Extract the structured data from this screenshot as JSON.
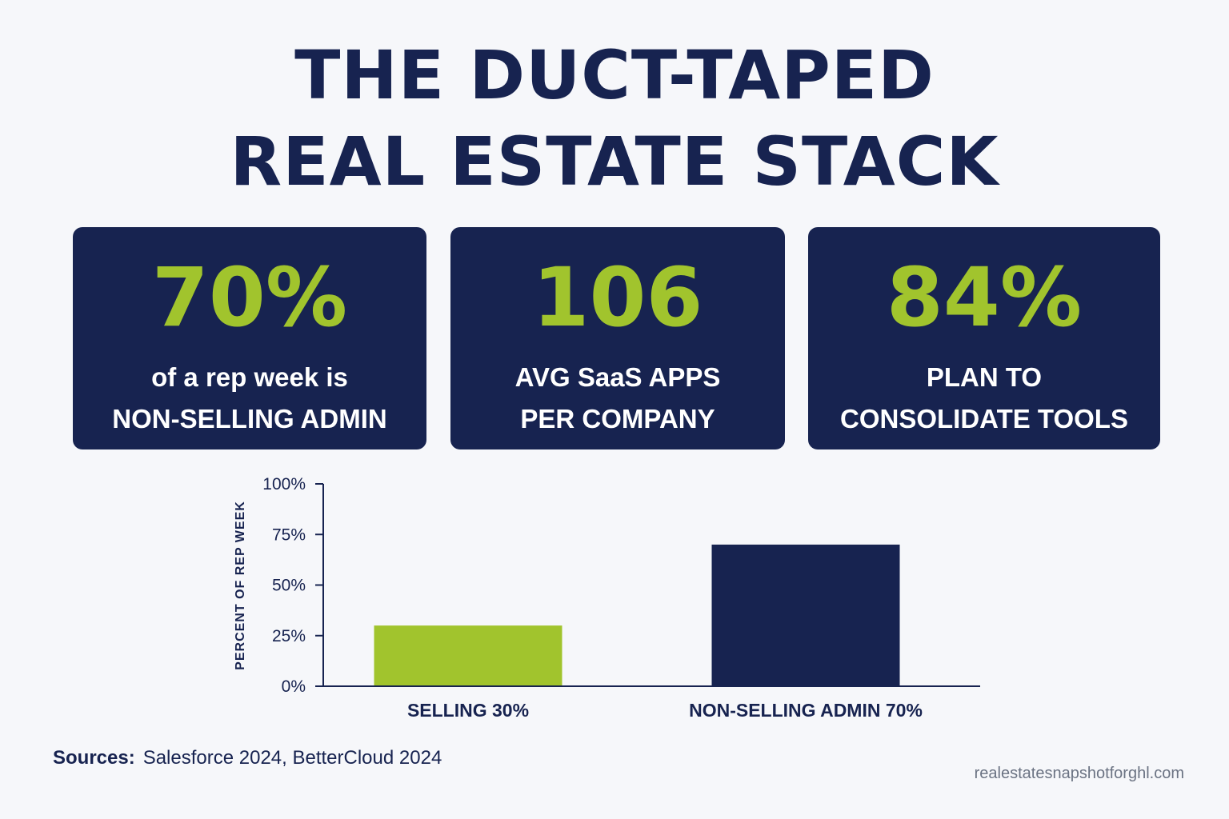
{
  "title": {
    "line1": "THE DUCT-TAPED",
    "line2": "REAL ESTATE STACK"
  },
  "stats": [
    {
      "value": "70%",
      "line1": "of a rep week is",
      "line2": "NON-SELLING ADMIN"
    },
    {
      "value": "106",
      "line1": "AVG SaaS APPS",
      "line2": "PER COMPANY"
    },
    {
      "value": "84%",
      "line1": "PLAN TO",
      "line2": "CONSOLIDATE TOOLS"
    }
  ],
  "chart_data": {
    "type": "bar",
    "categories": [
      "SELLING 30%",
      "NON-SELLING ADMIN 70%"
    ],
    "values": [
      30,
      70
    ],
    "colors": [
      "#a1c42d",
      "#172350"
    ],
    "ylabel": "PERCENT OF REP WEEK",
    "ylim": [
      0,
      100
    ],
    "yticks": [
      0,
      25,
      50,
      75,
      100
    ],
    "ytick_labels": [
      "0%",
      "25%",
      "50%",
      "75%",
      "100%"
    ],
    "grid": false
  },
  "footer": {
    "sources_label": "Sources:",
    "sources_text": "Salesforce 2024, BetterCloud 2024",
    "site": "realestatesnapshotforghl.com"
  },
  "colors": {
    "navy": "#172350",
    "lime": "#a1c42d",
    "background": "#f6f7fa"
  }
}
